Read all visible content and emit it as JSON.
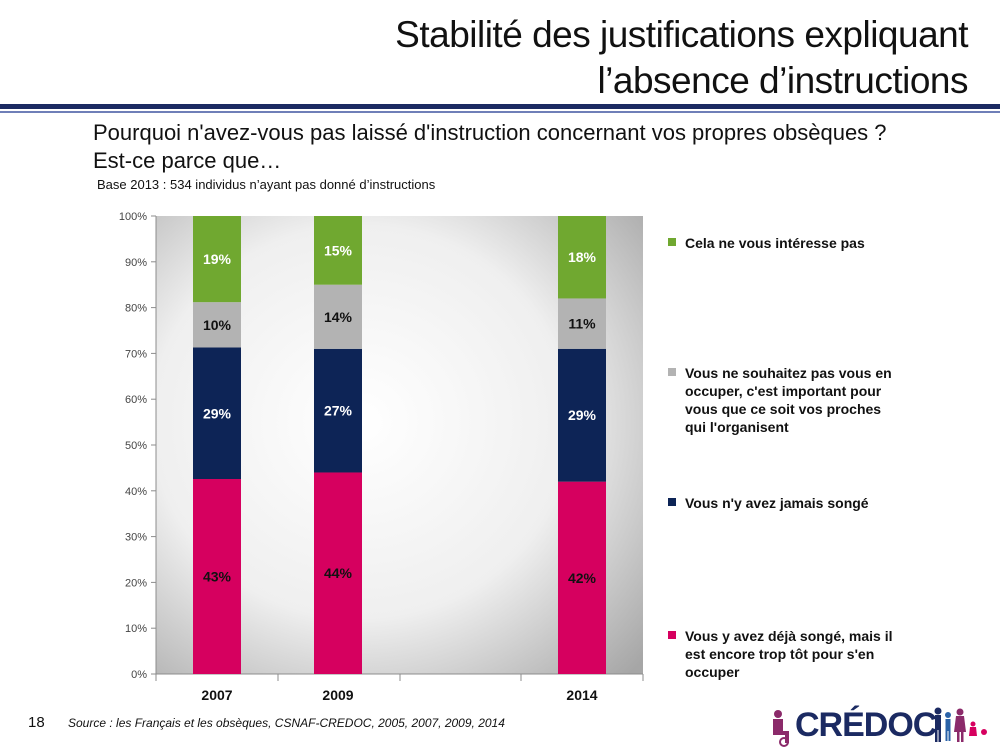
{
  "slide": {
    "title_line1": "Stabilité des justifications expliquant",
    "title_line2": "l’absence d’instructions",
    "question": "Pourquoi n'avez-vous pas laissé d'instruction concernant vos propres obsèques ? Est-ce parce que…",
    "base_note": "Base 2013 : 534 individus n’ayant pas donné d’instructions",
    "page_number": "18",
    "source": "Source : les Français et les obsèques, CSNAF-CREDOC, 2005, 2007, 2009, 2014",
    "logo_text": "CRÉDOC"
  },
  "chart_data": {
    "type": "bar",
    "stacked": true,
    "categories": [
      "2007",
      "2009",
      "2014"
    ],
    "yticks": [
      "0%",
      "10%",
      "20%",
      "30%",
      "40%",
      "50%",
      "60%",
      "70%",
      "80%",
      "90%",
      "100%"
    ],
    "ylim": [
      0,
      100
    ],
    "legend_position": "right",
    "series": [
      {
        "name": "Vous y avez déjà songé, mais il est encore trop tôt pour s'en occuper",
        "values": [
          43,
          44,
          42
        ],
        "labels": [
          "43%",
          "44%",
          "42%"
        ],
        "color": "#d6005f",
        "label_color": "#111111"
      },
      {
        "name": "Vous n'y avez jamais songé",
        "values": [
          29,
          27,
          29
        ],
        "labels": [
          "29%",
          "27%",
          "29%"
        ],
        "color": "#0d2456",
        "label_color": "#ffffff"
      },
      {
        "name": "Vous ne souhaitez pas vous en occuper, c'est important pour vous que ce soit vos proches qui l'organisent",
        "values": [
          10,
          14,
          11
        ],
        "labels": [
          "10%",
          "14%",
          "11%"
        ],
        "color": "#b3b3b3",
        "label_color": "#111111"
      },
      {
        "name": "Cela ne vous intéresse pas",
        "values": [
          19,
          15,
          18
        ],
        "labels": [
          "19%",
          "15%",
          "18%"
        ],
        "color": "#70a830",
        "label_color": "#ffffff"
      }
    ]
  }
}
